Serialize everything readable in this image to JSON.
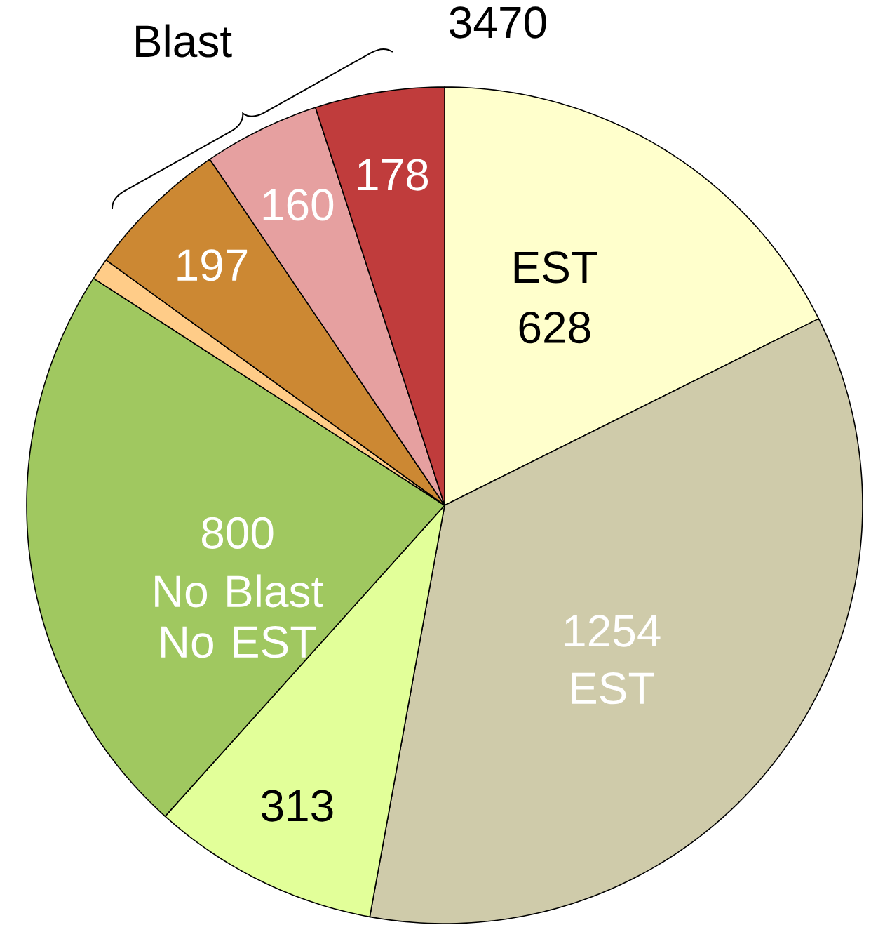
{
  "chart_data": {
    "type": "pie",
    "categories": [
      "EST",
      "EST",
      null,
      "No Blast No EST",
      null,
      null,
      null,
      null
    ],
    "values": [
      628,
      1254,
      313,
      800,
      30,
      197,
      160,
      178
    ],
    "value_labels": [
      "628",
      "1254",
      "313",
      "800",
      null,
      "197",
      "160",
      "178"
    ],
    "colors": [
      "#ffffcc",
      "#cfcbaa",
      "#e2ff99",
      "#a0c860",
      "#ffcc88",
      "#cc8833",
      "#e6a0a0",
      "#c03c3c"
    ],
    "annotations": [
      "Blast",
      "3470"
    ]
  }
}
